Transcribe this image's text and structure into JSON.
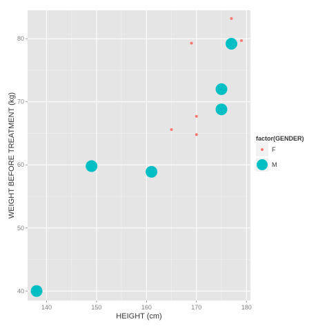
{
  "chart_data": {
    "type": "scatter",
    "xlabel": "HEIGHT (cm)",
    "ylabel": "WEIGHT BEFORE TREATMENT (kg)",
    "xlim": [
      136.2,
      180.8
    ],
    "ylim": [
      38.5,
      84.5
    ],
    "x_ticks": [
      140,
      150,
      160,
      170,
      180
    ],
    "y_ticks": [
      40,
      50,
      60,
      70,
      80
    ],
    "grid": true,
    "legend_position": "right",
    "legend_title": "factor(GENDER)",
    "series": [
      {
        "name": "F",
        "color": "#f8766d",
        "marker": "small-circle",
        "points": [
          {
            "x": 165,
            "y": 65.6
          },
          {
            "x": 169,
            "y": 79.3
          },
          {
            "x": 170,
            "y": 67.7
          },
          {
            "x": 170,
            "y": 64.8
          },
          {
            "x": 177,
            "y": 83.2
          },
          {
            "x": 179,
            "y": 79.7
          }
        ]
      },
      {
        "name": "M",
        "color": "#00bfc4",
        "marker": "large-circle",
        "points": [
          {
            "x": 138,
            "y": 40.0
          },
          {
            "x": 149,
            "y": 59.8
          },
          {
            "x": 161,
            "y": 58.9
          },
          {
            "x": 175,
            "y": 68.8
          },
          {
            "x": 175,
            "y": 72.0
          },
          {
            "x": 177,
            "y": 79.2
          }
        ]
      }
    ]
  }
}
